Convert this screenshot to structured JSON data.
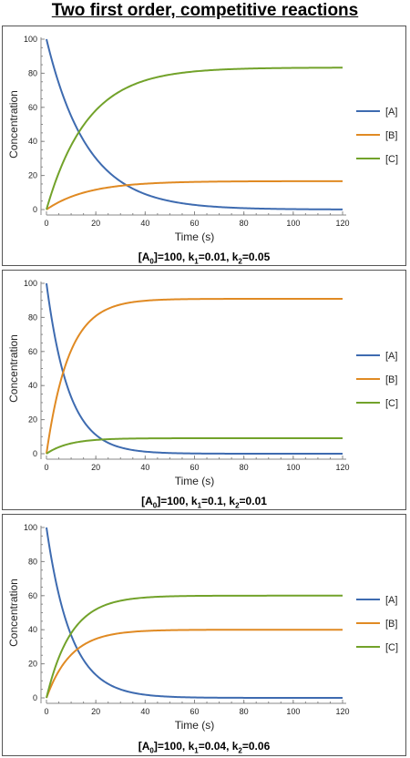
{
  "page": {
    "title": "Two first order, competitive reactions"
  },
  "colors": {
    "A": "#3e6bb0",
    "B": "#e08a23",
    "C": "#72a22a",
    "axis": "#888888",
    "text": "#222222"
  },
  "charts": [
    {
      "caption": {
        "a0_label": "[A",
        "a0_sub": "0",
        "a0_value": "]=100, ",
        "k1_label": "k",
        "k1_sub": "1",
        "k1_value": "=0.01, ",
        "k2_label": "k",
        "k2_sub": "2",
        "k2_value": "=0.05"
      },
      "chart_data": {
        "type": "line",
        "xlabel": "Time (s)",
        "ylabel": "Concentration",
        "xlim": [
          0,
          120
        ],
        "ylim": [
          0,
          100
        ],
        "xticks": [
          "0",
          "20",
          "40",
          "60",
          "80",
          "100",
          "120"
        ],
        "yticks": [
          "0",
          "20",
          "40",
          "60",
          "80",
          "100"
        ],
        "grid": false,
        "legend": "right",
        "params": {
          "A0": 100,
          "k1": 0.01,
          "k2": 0.05
        },
        "series": [
          {
            "name": "[A]",
            "color": "#3e6bb0",
            "x": [
              0,
              5,
              10,
              15,
              20,
              30,
              40,
              50,
              60,
              80,
              100,
              120
            ],
            "values": [
              100,
              74.08,
              54.88,
              40.66,
              30.12,
              16.53,
              9.07,
              4.98,
              2.73,
              0.82,
              0.25,
              0.07
            ]
          },
          {
            "name": "[B]",
            "color": "#e08a23",
            "x": [
              0,
              5,
              10,
              15,
              20,
              30,
              40,
              50,
              60,
              80,
              100,
              120
            ],
            "values": [
              0,
              4.32,
              7.52,
              9.89,
              11.65,
              13.91,
              15.15,
              15.84,
              16.21,
              16.53,
              16.63,
              16.65
            ]
          },
          {
            "name": "[C]",
            "color": "#72a22a",
            "x": [
              0,
              5,
              10,
              15,
              20,
              30,
              40,
              50,
              60,
              80,
              100,
              120
            ],
            "values": [
              0,
              21.6,
              37.6,
              49.45,
              58.23,
              69.56,
              75.77,
              79.18,
              81.06,
              82.65,
              83.12,
              83.27
            ]
          }
        ]
      }
    },
    {
      "caption": {
        "a0_label": "[A",
        "a0_sub": "0",
        "a0_value": "]=100, ",
        "k1_label": "k",
        "k1_sub": "1",
        "k1_value": "=0.1, ",
        "k2_label": "k",
        "k2_sub": "2",
        "k2_value": "=0.01"
      },
      "chart_data": {
        "type": "line",
        "xlabel": "Time (s)",
        "ylabel": "Concentration",
        "xlim": [
          0,
          120
        ],
        "ylim": [
          0,
          100
        ],
        "xticks": [
          "0",
          "20",
          "40",
          "60",
          "80",
          "100",
          "120"
        ],
        "yticks": [
          "0",
          "20",
          "40",
          "60",
          "80",
          "100"
        ],
        "grid": false,
        "legend": "right",
        "params": {
          "A0": 100,
          "k1": 0.1,
          "k2": 0.01
        },
        "series": [
          {
            "name": "[A]",
            "color": "#3e6bb0",
            "x": [
              0,
              5,
              10,
              15,
              20,
              30,
              40,
              50,
              60,
              80,
              100,
              120
            ],
            "values": [
              100,
              57.69,
              33.29,
              19.2,
              11.08,
              3.69,
              1.23,
              0.41,
              0.14,
              0.02,
              0,
              0
            ]
          },
          {
            "name": "[B]",
            "color": "#e08a23",
            "x": [
              0,
              5,
              10,
              15,
              20,
              30,
              40,
              50,
              60,
              80,
              100,
              120
            ],
            "values": [
              0,
              38.46,
              60.65,
              73.45,
              80.84,
              87.56,
              89.79,
              90.54,
              90.78,
              90.89,
              90.91,
              90.91
            ]
          },
          {
            "name": "[C]",
            "color": "#72a22a",
            "x": [
              0,
              5,
              10,
              15,
              20,
              30,
              40,
              50,
              60,
              80,
              100,
              120
            ],
            "values": [
              0,
              3.85,
              6.06,
              7.35,
              8.08,
              8.76,
              8.98,
              9.05,
              9.08,
              9.09,
              9.09,
              9.09
            ]
          }
        ]
      }
    },
    {
      "caption": {
        "a0_label": "[A",
        "a0_sub": "0",
        "a0_value": "]=100, ",
        "k1_label": "k",
        "k1_sub": "1",
        "k1_value": "=0.04, ",
        "k2_label": "k",
        "k2_sub": "2",
        "k2_value": "=0.06"
      },
      "chart_data": {
        "type": "line",
        "xlabel": "Time (s)",
        "ylabel": "Concentration",
        "xlim": [
          0,
          120
        ],
        "ylim": [
          0,
          100
        ],
        "xticks": [
          "0",
          "20",
          "40",
          "60",
          "80",
          "100",
          "120"
        ],
        "yticks": [
          "0",
          "20",
          "40",
          "60",
          "80",
          "100"
        ],
        "grid": false,
        "legend": "right",
        "params": {
          "A0": 100,
          "k1": 0.04,
          "k2": 0.06
        },
        "series": [
          {
            "name": "[A]",
            "color": "#3e6bb0",
            "x": [
              0,
              5,
              10,
              15,
              20,
              30,
              40,
              50,
              60,
              80,
              100,
              120
            ],
            "values": [
              100,
              60.65,
              36.79,
              22.31,
              13.53,
              4.98,
              1.83,
              0.67,
              0.25,
              0.03,
              0,
              0
            ]
          },
          {
            "name": "[B]",
            "color": "#e08a23",
            "x": [
              0,
              5,
              10,
              15,
              20,
              30,
              40,
              50,
              60,
              80,
              100,
              120
            ],
            "values": [
              0,
              15.74,
              25.28,
              31.08,
              34.59,
              38.01,
              39.27,
              39.73,
              39.9,
              39.99,
              40,
              40
            ]
          },
          {
            "name": "[C]",
            "color": "#72a22a",
            "x": [
              0,
              5,
              10,
              15,
              20,
              30,
              40,
              50,
              60,
              80,
              100,
              120
            ],
            "values": [
              0,
              23.61,
              37.93,
              46.61,
              51.88,
              57.01,
              58.9,
              59.6,
              59.85,
              59.98,
              60,
              60
            ]
          }
        ]
      }
    }
  ]
}
